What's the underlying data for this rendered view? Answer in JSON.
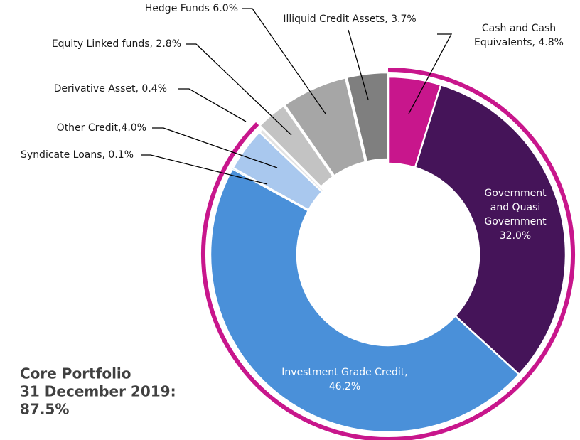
{
  "chart_data": {
    "type": "donut",
    "categories": [
      "Cash and Cash Equivalents",
      "Government and Quasi Government",
      "Investment Grade Credit",
      "Syndicate Loans",
      "Other Credit",
      "Derivative Asset",
      "Equity Linked funds",
      "Hedge Funds",
      "Illiquid Credit Assets"
    ],
    "values": [
      4.8,
      32.0,
      46.2,
      0.1,
      4.0,
      0.4,
      2.8,
      6.0,
      3.7
    ],
    "value_labels": [
      [
        "Cash and Cash",
        "Equivalents, 4.8%"
      ],
      [
        "Government",
        "and Quasi",
        "Government",
        "32.0%"
      ],
      [
        "Investment Grade Credit,",
        "46.2%"
      ],
      [
        "Syndicate Loans, 0.1%"
      ],
      [
        "Other Credit,4.0%"
      ],
      [
        "Derivative Asset, 0.4%"
      ],
      [
        "Equity Linked funds, 2.8%"
      ],
      [
        "Hedge Funds 6.0%"
      ],
      [
        "Illiquid Credit Assets, 3.7%"
      ]
    ],
    "colors": [
      "#c8168c",
      "#451459",
      "#4a90d9",
      "#1bb0e0",
      "#a9c8ee",
      "#e3e3e3",
      "#c3c3c3",
      "#a6a6a6",
      "#7f7f7f"
    ],
    "core": {
      "lines": [
        "Core Portfolio",
        "31 December 2019:"
      ],
      "value": 87.5,
      "value_label": "87.5%",
      "color": "#c8168c"
    }
  }
}
